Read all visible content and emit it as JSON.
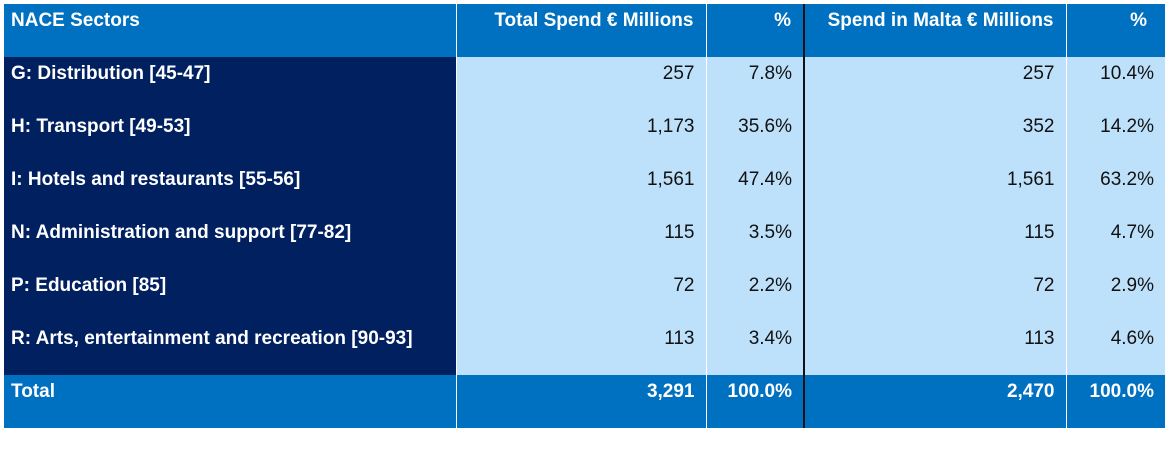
{
  "table": {
    "headers": {
      "sector": "NACE Sectors",
      "total_spend": "Total Spend € Millions",
      "total_pct": "%",
      "malta_spend": "Spend in Malta € Millions",
      "malta_pct": "%"
    },
    "rows": [
      {
        "sector": "G: Distribution [45-47]",
        "total_spend": "257",
        "total_pct": "7.8%",
        "malta_spend": "257",
        "malta_pct": "10.4%"
      },
      {
        "sector": "H: Transport [49-53]",
        "total_spend": "1,173",
        "total_pct": "35.6%",
        "malta_spend": "352",
        "malta_pct": "14.2%"
      },
      {
        "sector": "I: Hotels and restaurants [55-56]",
        "total_spend": "1,561",
        "total_pct": "47.4%",
        "malta_spend": "1,561",
        "malta_pct": "63.2%"
      },
      {
        "sector": "N: Administration and support [77-82]",
        "total_spend": "115",
        "total_pct": "3.5%",
        "malta_spend": "115",
        "malta_pct": "4.7%"
      },
      {
        "sector": "P: Education [85]",
        "total_spend": "72",
        "total_pct": "2.2%",
        "malta_spend": "72",
        "malta_pct": "2.9%"
      },
      {
        "sector": "R: Arts, entertainment and recreation [90-93]",
        "total_spend": "113",
        "total_pct": "3.4%",
        "malta_spend": "113",
        "malta_pct": "4.6%"
      }
    ],
    "total": {
      "sector": "Total",
      "total_spend": "3,291",
      "total_pct": "100.0%",
      "malta_spend": "2,470",
      "malta_pct": "100.0%"
    }
  },
  "colors": {
    "header_blue": "#0070c0",
    "sector_navy": "#002060",
    "value_light_blue": "#bde0fb"
  }
}
